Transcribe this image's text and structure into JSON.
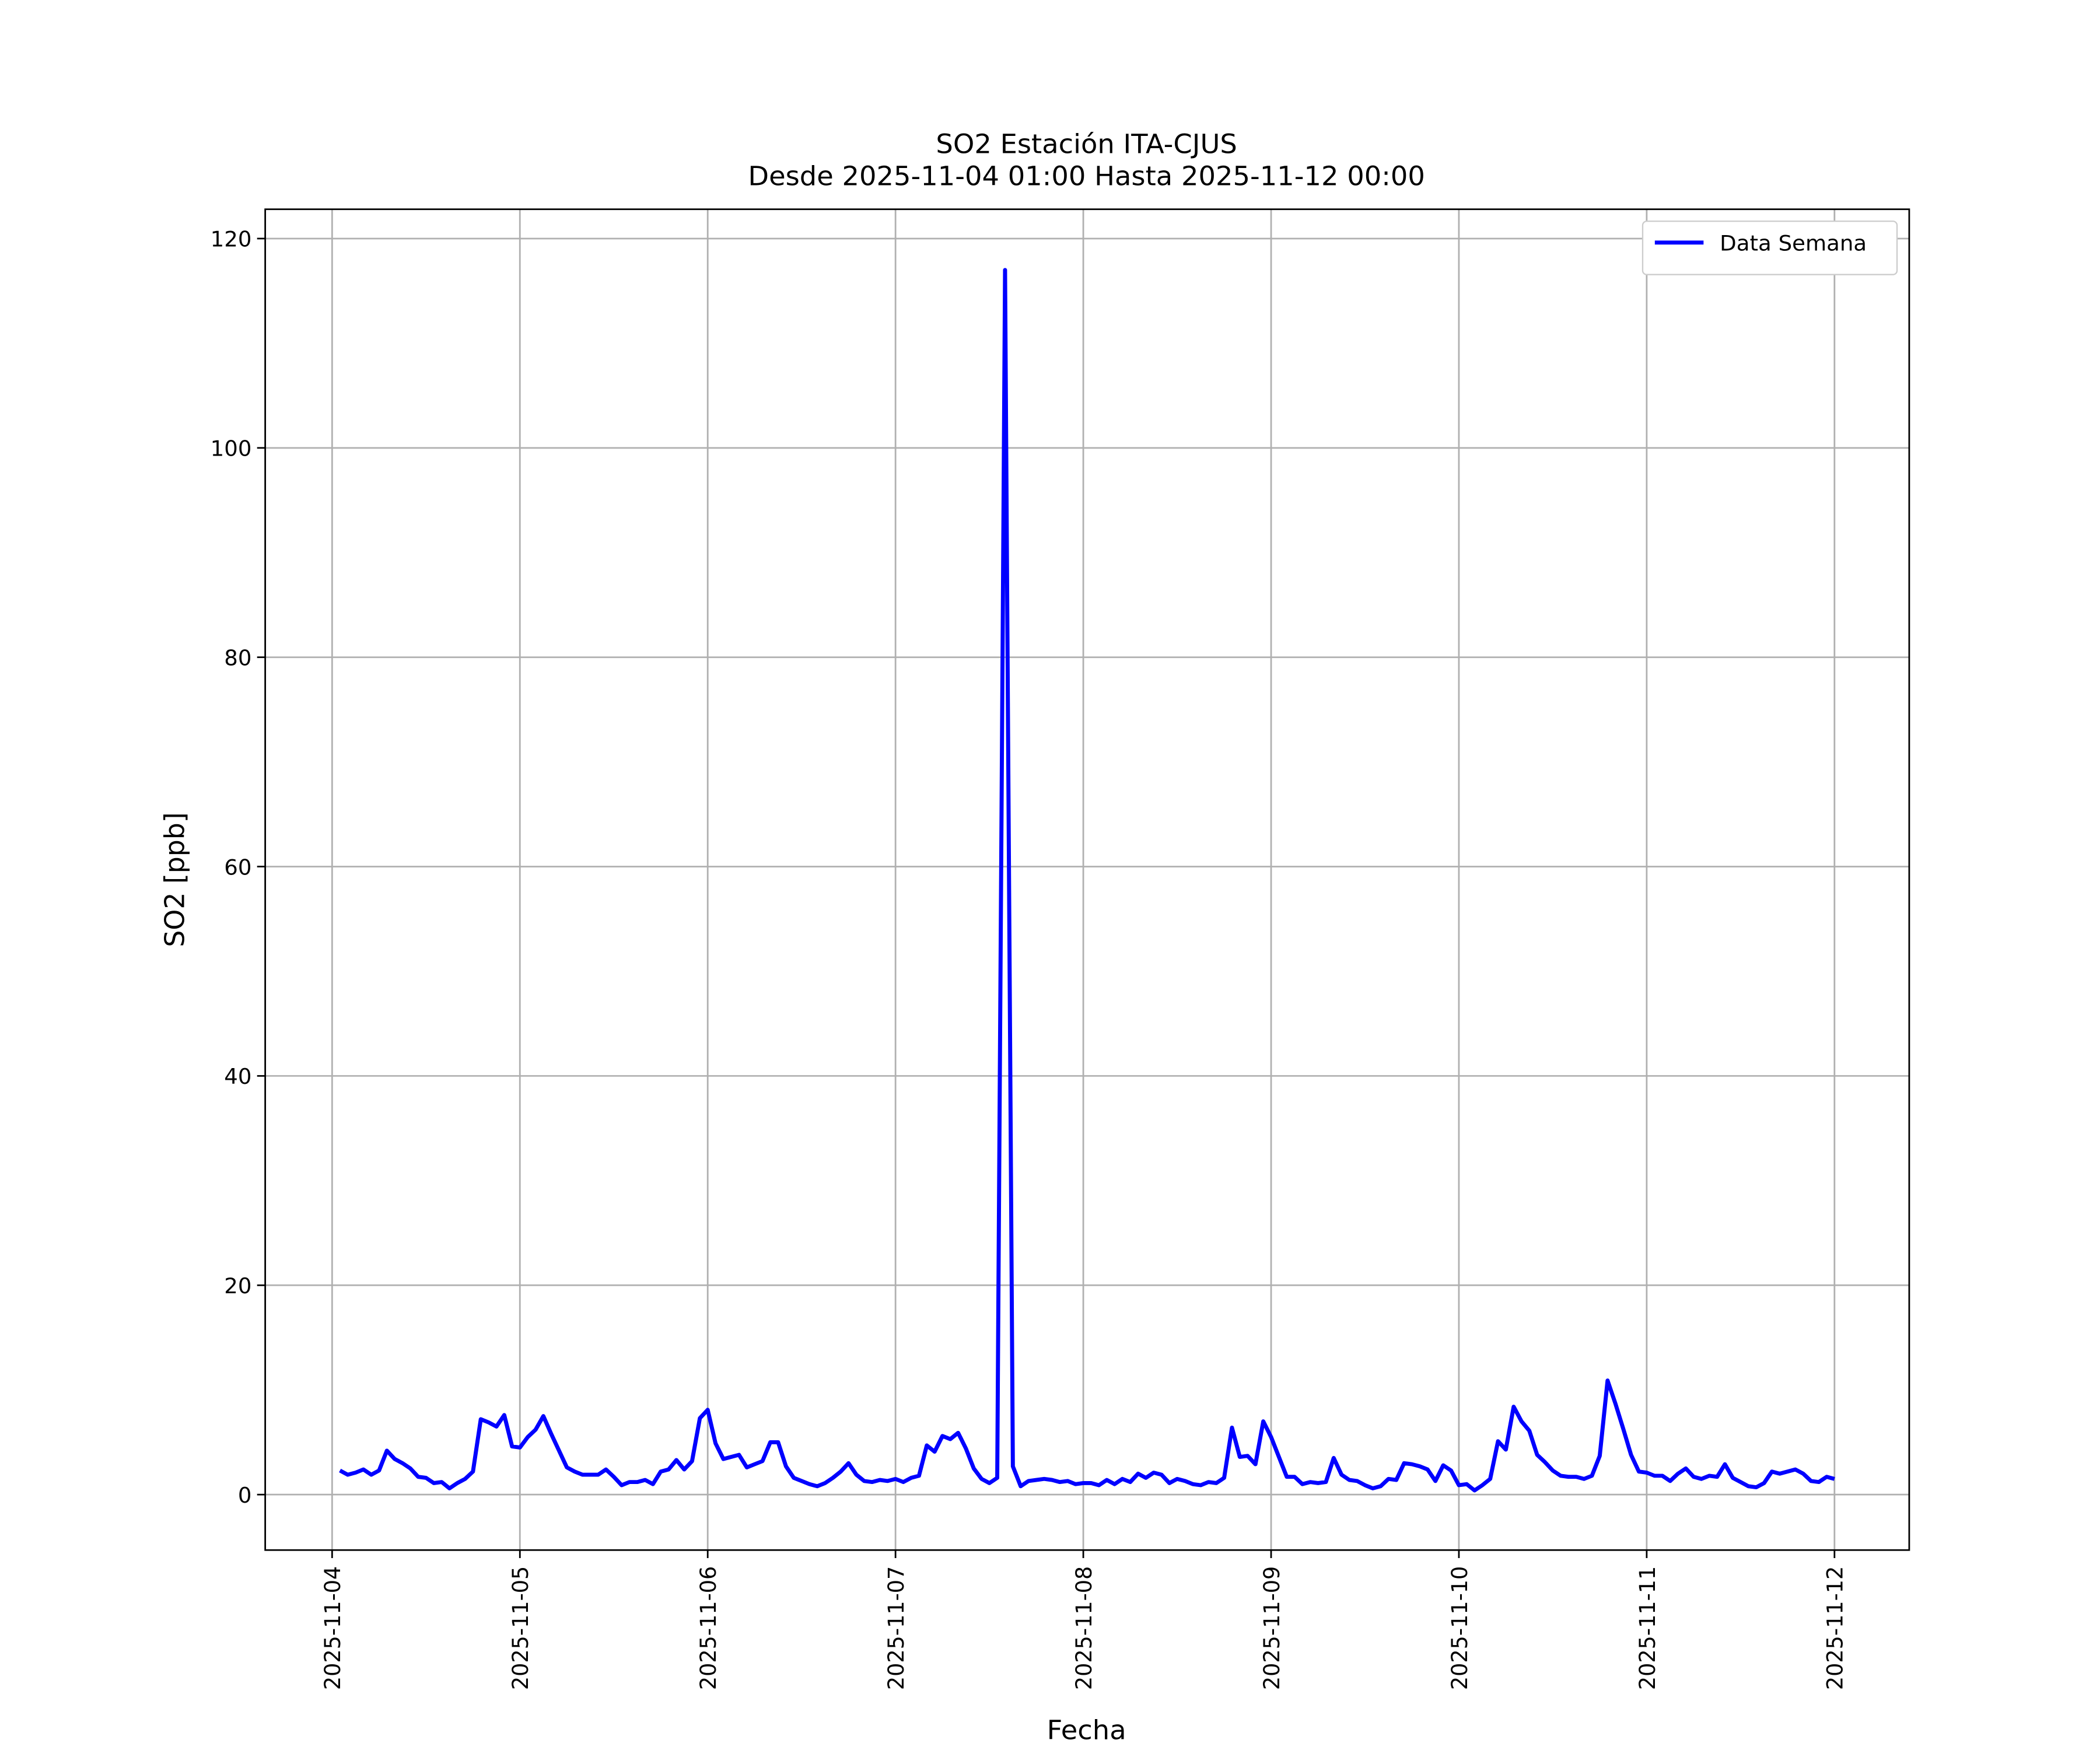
{
  "chart_data": {
    "type": "line",
    "title": "SO2 Estación ITA-CJUS",
    "subtitle": "Desde 2025-11-04 01:00 Hasta 2025-11-12 00:00",
    "x_label": "Fecha",
    "y_label": "SO2 [ppb]",
    "x": [
      "2025-11-04 01:00",
      "2025-11-04 02:00",
      "2025-11-04 03:00",
      "2025-11-04 04:00",
      "2025-11-04 05:00",
      "2025-11-04 06:00",
      "2025-11-04 07:00",
      "2025-11-04 08:00",
      "2025-11-04 09:00",
      "2025-11-04 10:00",
      "2025-11-04 11:00",
      "2025-11-04 12:00",
      "2025-11-04 13:00",
      "2025-11-04 14:00",
      "2025-11-04 15:00",
      "2025-11-04 16:00",
      "2025-11-04 17:00",
      "2025-11-04 18:00",
      "2025-11-04 19:00",
      "2025-11-04 20:00",
      "2025-11-04 21:00",
      "2025-11-04 22:00",
      "2025-11-04 23:00",
      "2025-11-05 00:00",
      "2025-11-05 01:00",
      "2025-11-05 02:00",
      "2025-11-05 03:00",
      "2025-11-05 04:00",
      "2025-11-05 05:00",
      "2025-11-05 06:00",
      "2025-11-05 07:00",
      "2025-11-05 08:00",
      "2025-11-05 09:00",
      "2025-11-05 10:00",
      "2025-11-05 11:00",
      "2025-11-05 12:00",
      "2025-11-05 13:00",
      "2025-11-05 14:00",
      "2025-11-05 15:00",
      "2025-11-05 16:00",
      "2025-11-05 17:00",
      "2025-11-05 18:00",
      "2025-11-05 19:00",
      "2025-11-05 20:00",
      "2025-11-05 21:00",
      "2025-11-05 22:00",
      "2025-11-05 23:00",
      "2025-11-06 00:00",
      "2025-11-06 01:00",
      "2025-11-06 02:00",
      "2025-11-06 03:00",
      "2025-11-06 04:00",
      "2025-11-06 05:00",
      "2025-11-06 06:00",
      "2025-11-06 07:00",
      "2025-11-06 08:00",
      "2025-11-06 09:00",
      "2025-11-06 10:00",
      "2025-11-06 11:00",
      "2025-11-06 12:00",
      "2025-11-06 13:00",
      "2025-11-06 14:00",
      "2025-11-06 15:00",
      "2025-11-06 16:00",
      "2025-11-06 17:00",
      "2025-11-06 18:00",
      "2025-11-06 19:00",
      "2025-11-06 20:00",
      "2025-11-06 21:00",
      "2025-11-06 22:00",
      "2025-11-06 23:00",
      "2025-11-07 00:00",
      "2025-11-07 01:00",
      "2025-11-07 02:00",
      "2025-11-07 03:00",
      "2025-11-07 04:00",
      "2025-11-07 05:00",
      "2025-11-07 06:00",
      "2025-11-07 07:00",
      "2025-11-07 08:00",
      "2025-11-07 09:00",
      "2025-11-07 10:00",
      "2025-11-07 11:00",
      "2025-11-07 12:00",
      "2025-11-07 13:00",
      "2025-11-07 14:00",
      "2025-11-07 15:00",
      "2025-11-07 16:00",
      "2025-11-07 17:00",
      "2025-11-07 18:00",
      "2025-11-07 19:00",
      "2025-11-07 20:00",
      "2025-11-07 21:00",
      "2025-11-07 22:00",
      "2025-11-07 23:00",
      "2025-11-08 00:00",
      "2025-11-08 01:00",
      "2025-11-08 02:00",
      "2025-11-08 03:00",
      "2025-11-08 04:00",
      "2025-11-08 05:00",
      "2025-11-08 06:00",
      "2025-11-08 07:00",
      "2025-11-08 08:00",
      "2025-11-08 09:00",
      "2025-11-08 10:00",
      "2025-11-08 11:00",
      "2025-11-08 12:00",
      "2025-11-08 13:00",
      "2025-11-08 14:00",
      "2025-11-08 15:00",
      "2025-11-08 16:00",
      "2025-11-08 17:00",
      "2025-11-08 18:00",
      "2025-11-08 19:00",
      "2025-11-08 20:00",
      "2025-11-08 21:00",
      "2025-11-08 22:00",
      "2025-11-08 23:00",
      "2025-11-09 00:00",
      "2025-11-09 01:00",
      "2025-11-09 02:00",
      "2025-11-09 03:00",
      "2025-11-09 04:00",
      "2025-11-09 05:00",
      "2025-11-09 06:00",
      "2025-11-09 07:00",
      "2025-11-09 08:00",
      "2025-11-09 09:00",
      "2025-11-09 10:00",
      "2025-11-09 11:00",
      "2025-11-09 12:00",
      "2025-11-09 13:00",
      "2025-11-09 14:00",
      "2025-11-09 15:00",
      "2025-11-09 16:00",
      "2025-11-09 17:00",
      "2025-11-09 18:00",
      "2025-11-09 19:00",
      "2025-11-09 20:00",
      "2025-11-09 21:00",
      "2025-11-09 22:00",
      "2025-11-09 23:00",
      "2025-11-10 00:00",
      "2025-11-10 01:00",
      "2025-11-10 02:00",
      "2025-11-10 03:00",
      "2025-11-10 04:00",
      "2025-11-10 05:00",
      "2025-11-10 06:00",
      "2025-11-10 07:00",
      "2025-11-10 08:00",
      "2025-11-10 09:00",
      "2025-11-10 10:00",
      "2025-11-10 11:00",
      "2025-11-10 12:00",
      "2025-11-10 13:00",
      "2025-11-10 14:00",
      "2025-11-10 15:00",
      "2025-11-10 16:00",
      "2025-11-10 17:00",
      "2025-11-10 18:00",
      "2025-11-10 19:00",
      "2025-11-10 20:00",
      "2025-11-10 21:00",
      "2025-11-10 22:00",
      "2025-11-10 23:00",
      "2025-11-11 00:00",
      "2025-11-11 01:00",
      "2025-11-11 02:00",
      "2025-11-11 03:00",
      "2025-11-11 04:00",
      "2025-11-11 05:00",
      "2025-11-11 06:00",
      "2025-11-11 07:00",
      "2025-11-11 08:00",
      "2025-11-11 09:00",
      "2025-11-11 10:00",
      "2025-11-11 11:00",
      "2025-11-11 12:00",
      "2025-11-11 13:00",
      "2025-11-11 14:00",
      "2025-11-11 15:00",
      "2025-11-11 16:00",
      "2025-11-11 17:00",
      "2025-11-11 18:00",
      "2025-11-11 19:00",
      "2025-11-11 20:00",
      "2025-11-11 21:00",
      "2025-11-11 22:00",
      "2025-11-11 23:00",
      "2025-11-12 00:00"
    ],
    "series": [
      {
        "name": "Data Semana",
        "color": "#0000ff",
        "values": [
          2.3,
          1.9,
          2.1,
          2.4,
          1.9,
          2.3,
          4.2,
          3.4,
          3.0,
          2.5,
          1.7,
          1.6,
          1.1,
          1.2,
          0.6,
          1.1,
          1.5,
          2.2,
          7.2,
          6.9,
          6.5,
          7.6,
          4.6,
          4.5,
          5.5,
          6.2,
          7.5,
          5.8,
          4.2,
          2.6,
          2.2,
          1.9,
          1.9,
          1.9,
          2.4,
          1.7,
          0.9,
          1.2,
          1.2,
          1.4,
          1.0,
          2.2,
          2.4,
          3.3,
          2.4,
          3.2,
          7.3,
          8.1,
          4.9,
          3.4,
          3.6,
          3.8,
          2.6,
          2.9,
          3.2,
          5.0,
          5.0,
          2.7,
          1.6,
          1.3,
          1.0,
          0.8,
          1.1,
          1.6,
          2.2,
          3.0,
          1.9,
          1.3,
          1.2,
          1.4,
          1.3,
          1.5,
          1.2,
          1.6,
          1.8,
          4.7,
          4.1,
          5.6,
          5.3,
          5.9,
          4.4,
          2.5,
          1.5,
          1.1,
          1.6,
          117.0,
          2.7,
          0.8,
          1.3,
          1.4,
          1.5,
          1.4,
          1.2,
          1.3,
          1.0,
          1.1,
          1.1,
          0.9,
          1.4,
          1.0,
          1.5,
          1.2,
          2.0,
          1.6,
          2.1,
          1.9,
          1.1,
          1.5,
          1.3,
          1.0,
          0.9,
          1.2,
          1.1,
          1.6,
          6.4,
          3.6,
          3.7,
          2.9,
          7.0,
          5.5,
          3.6,
          1.7,
          1.7,
          1.0,
          1.2,
          1.1,
          1.2,
          3.5,
          1.9,
          1.4,
          1.3,
          0.9,
          0.6,
          0.8,
          1.5,
          1.4,
          3.0,
          2.9,
          2.7,
          2.4,
          1.3,
          2.8,
          2.3,
          0.9,
          1.0,
          0.4,
          0.9,
          1.5,
          5.1,
          4.3,
          8.4,
          7.0,
          6.1,
          3.8,
          3.1,
          2.3,
          1.8,
          1.7,
          1.7,
          1.5,
          1.8,
          3.7,
          10.9,
          8.7,
          6.3,
          3.8,
          2.2,
          2.1,
          1.8,
          1.8,
          1.3,
          2.0,
          2.5,
          1.7,
          1.5,
          1.8,
          1.7,
          2.9,
          1.6,
          1.2,
          0.8,
          0.7,
          1.1,
          2.2,
          2.0,
          2.2,
          2.4,
          2.0,
          1.3,
          1.2,
          1.7,
          1.5
        ]
      }
    ],
    "xlim": [
      "2025-11-03 15:27",
      "2025-11-12 09:33"
    ],
    "xticks": [
      "2025-11-04",
      "2025-11-05",
      "2025-11-06",
      "2025-11-07",
      "2025-11-08",
      "2025-11-09",
      "2025-11-10",
      "2025-11-11",
      "2025-11-12"
    ],
    "ylim": [
      -5.3,
      122.8
    ],
    "yticks": [
      0,
      20,
      40,
      60,
      80,
      100,
      120
    ],
    "grid": true,
    "legend": "upper right"
  }
}
